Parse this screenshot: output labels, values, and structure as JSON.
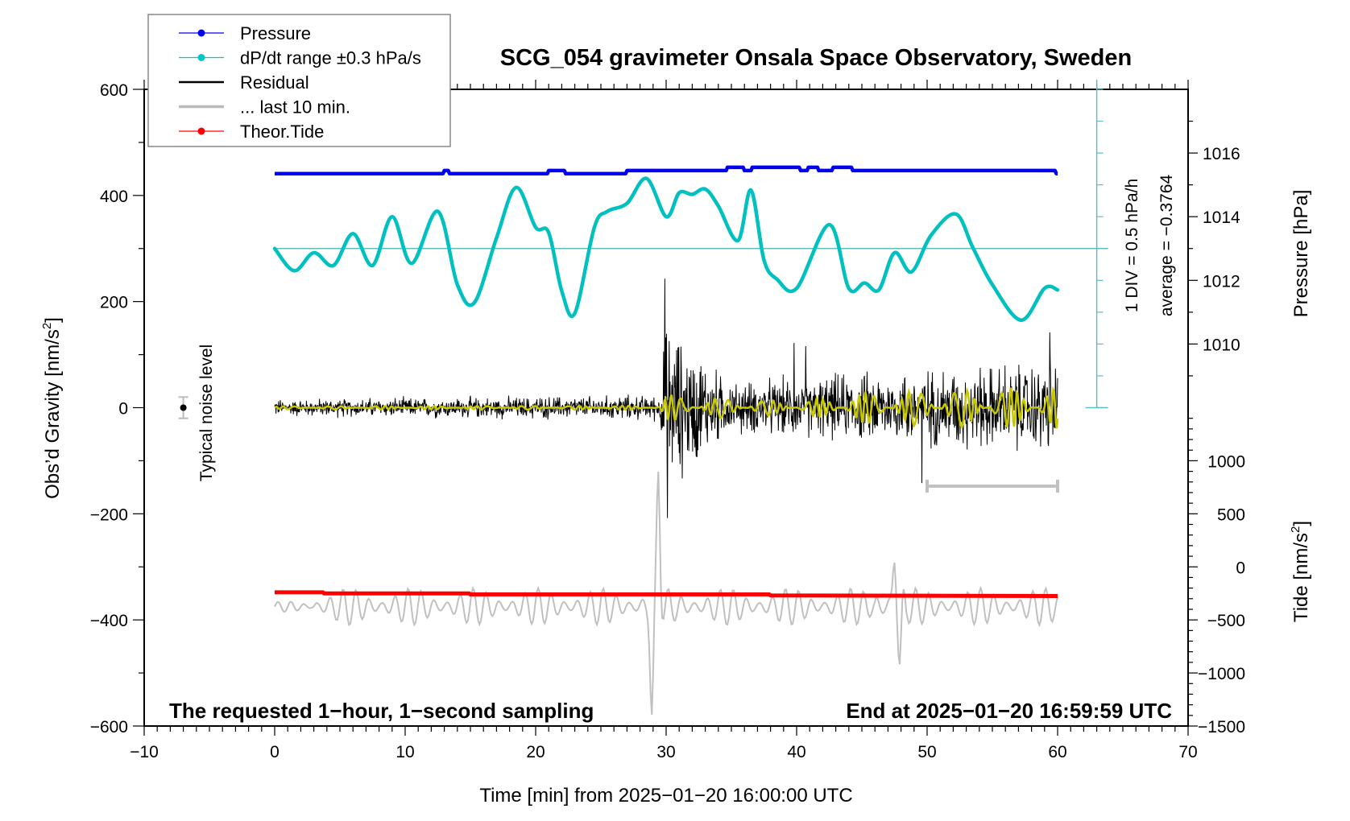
{
  "chart_data": {
    "type": "line",
    "title": "SCG_054 gravimeter Onsala Space Observatory, Sweden",
    "xlabel": "Time [min] from 2025−01−20 16:00:00 UTC",
    "ylabel_left": "Obs’d Gravity [nm/s",
    "ylabel_left_sup": "2",
    "ylabel_left_end": "]",
    "ylabel_right_pressure": "Pressure [hPa]",
    "ylabel_right_tide": "Tide [nm/s",
    "ylabel_right_tide_sup": "2",
    "ylabel_right_tide_end": "]",
    "xlim": [
      -10,
      70
    ],
    "ylim": [
      -600,
      600
    ],
    "x_ticks": [
      "−10",
      "0",
      "10",
      "20",
      "30",
      "40",
      "50",
      "60",
      "70"
    ],
    "x_tick_values": [
      -10,
      0,
      10,
      20,
      30,
      40,
      50,
      60,
      70
    ],
    "y_ticks": [
      "−600",
      "−400",
      "−200",
      "0",
      "200",
      "400",
      "600"
    ],
    "y_tick_values": [
      -600,
      -400,
      -200,
      0,
      200,
      400,
      600
    ],
    "pressure_ticks": [
      "1010",
      "1012",
      "1014",
      "1016"
    ],
    "pressure_tick_values": [
      1010,
      1012,
      1014,
      1016
    ],
    "pressure_axis_map": {
      "p1": 1010,
      "g1": 120,
      "p2": 1016,
      "g2": 480
    },
    "tide_ticks": [
      "−1500",
      "−1000",
      "−500",
      "0",
      "500",
      "1000"
    ],
    "tide_tick_values": [
      -1500,
      -1000,
      -500,
      0,
      500,
      1000
    ],
    "tide_axis_map": {
      "t1": -1500,
      "g1": -600,
      "t2": 1000,
      "g2": -100
    },
    "annotations": {
      "div_scale": "1 DIV = 0.5 hPa/h",
      "average": "average = −0.3764",
      "noise_label": "Typical noise level",
      "bottom_left": "The requested 1−hour, 1−second sampling",
      "bottom_right": "End at 2025−01−20 16:59:59 UTC"
    },
    "legend": {
      "placement": "top-left",
      "entries": [
        {
          "label": "Pressure",
          "color": "#0000ee",
          "marker": true
        },
        {
          "label": "dP/dt range ±0.3 hPa/s",
          "color": "#00c8c8",
          "marker": true
        },
        {
          "label": "Residual",
          "color": "#000000",
          "marker": false
        },
        {
          "label": "... last 10 min.",
          "color": "#bbbbbb",
          "marker": false
        },
        {
          "label": "Theor.Tide",
          "color": "#ff0000",
          "marker": true
        }
      ]
    },
    "colors": {
      "pressure": "#0000ee",
      "dpdt": "#00c0c0",
      "dpdt_axis": "#5fbfbf",
      "residual": "#000000",
      "residual_filtered": "#c8c800",
      "last10": "#c0c0c0",
      "tide": "#ff0000"
    },
    "series": [
      {
        "name": "Pressure",
        "unit": "hPa",
        "x": [
          0,
          12.9,
          13.0,
          13.3,
          13.4,
          20.9,
          21.0,
          22.2,
          22.3,
          26.9,
          27.0,
          34.6,
          34.7,
          35.9,
          36.0,
          36.5,
          36.6,
          40.2,
          40.3,
          40.8,
          40.9,
          41.6,
          41.7,
          42.7,
          42.8,
          44.2,
          44.3,
          59.8,
          59.9,
          60.0
        ],
        "values": [
          1015.35,
          1015.35,
          1015.45,
          1015.45,
          1015.35,
          1015.35,
          1015.45,
          1015.45,
          1015.35,
          1015.35,
          1015.45,
          1015.45,
          1015.55,
          1015.55,
          1015.45,
          1015.45,
          1015.55,
          1015.55,
          1015.45,
          1015.45,
          1015.55,
          1015.55,
          1015.45,
          1015.45,
          1015.55,
          1015.55,
          1015.45,
          1015.45,
          1015.35,
          1015.35
        ]
      },
      {
        "name": "dP/dt",
        "unit": "nm/s2 display",
        "x": [
          0,
          1.5,
          3,
          4.5,
          6,
          7.5,
          9,
          10.5,
          12.5,
          14,
          15.3,
          17,
          18.5,
          20,
          21,
          22,
          23,
          24.5,
          25.5,
          27,
          28.5,
          30,
          31,
          32,
          33,
          34,
          35.5,
          36.5,
          37.5,
          38.5,
          40,
          42.5,
          44,
          45.2,
          46.3,
          47.5,
          48.8,
          50.3,
          52.2,
          53.5,
          55,
          57.2,
          59,
          60
        ],
        "values": [
          300,
          258,
          292,
          268,
          328,
          268,
          360,
          272,
          370,
          232,
          198,
          320,
          415,
          340,
          330,
          220,
          178,
          340,
          370,
          385,
          432,
          360,
          405,
          402,
          412,
          380,
          315,
          410,
          278,
          242,
          225,
          345,
          225,
          235,
          222,
          292,
          256,
          325,
          365,
          302,
          232,
          165,
          225,
          222
        ]
      },
      {
        "name": "dP/dt average line",
        "value": 300
      },
      {
        "name": "Residual",
        "unit": "nm/s2",
        "x_range": [
          0,
          60
        ],
        "amplitude_envelope": {
          "x": [
            0,
            29.5,
            30,
            35,
            40,
            45,
            50,
            55,
            60
          ],
          "values": [
            20,
            30,
            200,
            60,
            70,
            80,
            90,
            100,
            110
          ]
        },
        "spikes": [
          {
            "x": 29.9,
            "value": 243
          },
          {
            "x": 30.1,
            "value": -208
          },
          {
            "x": 39.8,
            "value": 122
          },
          {
            "x": 40.7,
            "value": 116
          },
          {
            "x": 49.6,
            "value": -142
          },
          {
            "x": 59.4,
            "value": 142
          }
        ]
      },
      {
        "name": "Residual (filtered)",
        "unit": "nm/s2",
        "x_range": [
          0,
          60
        ],
        "amplitude_envelope": {
          "x": [
            0,
            29.5,
            30,
            40,
            45,
            50,
            60
          ],
          "values": [
            3,
            4,
            25,
            12,
            30,
            35,
            40
          ]
        }
      },
      {
        "name": "... last 10 min.",
        "unit": "nm/s2 display",
        "x_range": [
          0,
          60
        ],
        "baseline": -375,
        "peak_max": {
          "x": 29.4,
          "value": -125
        },
        "peak_min": {
          "x": 28.9,
          "value": -575
        },
        "secondary_max": {
          "x": 47.5,
          "value": -275
        },
        "secondary_min": {
          "x": 47.9,
          "value": -490
        }
      },
      {
        "name": "Theor.Tide",
        "unit": "nm/s2 display",
        "x": [
          0,
          3.7,
          3.8,
          14.9,
          15,
          37.9,
          38,
          60
        ],
        "values": [
          -348,
          -348,
          -350,
          -350,
          -352,
          -352,
          -354,
          -355
        ]
      }
    ],
    "noise_level": {
      "x": -7,
      "value": 0,
      "error": 20
    },
    "last10_bar": {
      "x_start": 50,
      "x_end": 60,
      "value": -148
    }
  }
}
